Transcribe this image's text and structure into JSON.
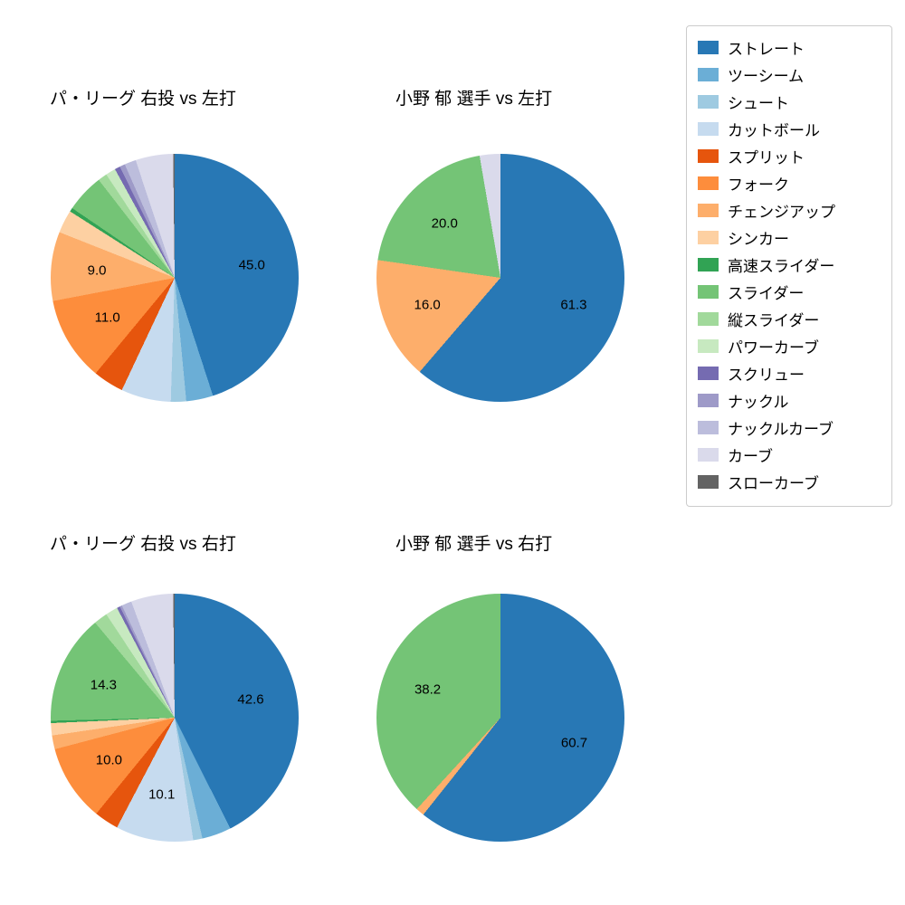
{
  "figure": {
    "background": "#ffffff",
    "text_color": "#000000"
  },
  "legend": {
    "position": "top-right",
    "items": [
      {
        "label": "ストレート",
        "color": "#2878b5"
      },
      {
        "label": "ツーシーム",
        "color": "#6baed6"
      },
      {
        "label": "シュート",
        "color": "#9ecae1"
      },
      {
        "label": "カットボール",
        "color": "#c6dbef"
      },
      {
        "label": "スプリット",
        "color": "#e6550d"
      },
      {
        "label": "フォーク",
        "color": "#fd8d3c"
      },
      {
        "label": "チェンジアップ",
        "color": "#fdae6b"
      },
      {
        "label": "シンカー",
        "color": "#fdd0a2"
      },
      {
        "label": "高速スライダー",
        "color": "#31a354"
      },
      {
        "label": "スライダー",
        "color": "#74c476"
      },
      {
        "label": "縦スライダー",
        "color": "#a1d99b"
      },
      {
        "label": "パワーカーブ",
        "color": "#c7e9c0"
      },
      {
        "label": "スクリュー",
        "color": "#756bb1"
      },
      {
        "label": "ナックル",
        "color": "#9e9ac8"
      },
      {
        "label": "ナックルカーブ",
        "color": "#bcbddc"
      },
      {
        "label": "カーブ",
        "color": "#dadaeb"
      },
      {
        "label": "スローカーブ",
        "color": "#636363"
      }
    ]
  },
  "chart_data": [
    {
      "type": "pie",
      "title": "パ・リーグ 右投 vs 左打",
      "start_angle": "top",
      "direction": "clockwise",
      "label_distance": 0.63,
      "slices": [
        {
          "label": "ストレート",
          "value": 45.0,
          "labeled": true
        },
        {
          "label": "ツーシーム",
          "value": 3.5,
          "labeled": false
        },
        {
          "label": "シュート",
          "value": 2.0,
          "labeled": false
        },
        {
          "label": "カットボール",
          "value": 6.5,
          "labeled": false
        },
        {
          "label": "スプリット",
          "value": 4.0,
          "labeled": false
        },
        {
          "label": "フォーク",
          "value": 11.0,
          "labeled": true
        },
        {
          "label": "チェンジアップ",
          "value": 9.0,
          "labeled": true
        },
        {
          "label": "シンカー",
          "value": 3.0,
          "labeled": false
        },
        {
          "label": "高速スライダー",
          "value": 0.5,
          "labeled": false
        },
        {
          "label": "スライダー",
          "value": 5.0,
          "labeled": false
        },
        {
          "label": "縦スライダー",
          "value": 1.2,
          "labeled": false
        },
        {
          "label": "パワーカーブ",
          "value": 1.3,
          "labeled": false
        },
        {
          "label": "スクリュー",
          "value": 0.7,
          "labeled": false
        },
        {
          "label": "ナックル",
          "value": 0.7,
          "labeled": false
        },
        {
          "label": "ナックルカーブ",
          "value": 1.5,
          "labeled": false
        },
        {
          "label": "カーブ",
          "value": 4.9,
          "labeled": false
        },
        {
          "label": "スローカーブ",
          "value": 0.2,
          "labeled": false
        }
      ]
    },
    {
      "type": "pie",
      "title": "小野 郁 選手 vs 左打",
      "start_angle": "top",
      "direction": "clockwise",
      "label_distance": 0.63,
      "slices": [
        {
          "label": "ストレート",
          "value": 61.3,
          "labeled": true
        },
        {
          "label": "チェンジアップ",
          "value": 16.0,
          "labeled": true
        },
        {
          "label": "スライダー",
          "value": 20.0,
          "labeled": true
        },
        {
          "label": "カーブ",
          "value": 2.7,
          "labeled": false
        }
      ]
    },
    {
      "type": "pie",
      "title": "パ・リーグ 右投 vs 右打",
      "start_angle": "top",
      "direction": "clockwise",
      "label_distance": 0.63,
      "slices": [
        {
          "label": "ストレート",
          "value": 42.6,
          "labeled": true
        },
        {
          "label": "ツーシーム",
          "value": 3.8,
          "labeled": false
        },
        {
          "label": "シュート",
          "value": 1.2,
          "labeled": false
        },
        {
          "label": "カットボール",
          "value": 10.1,
          "labeled": true
        },
        {
          "label": "スプリット",
          "value": 3.2,
          "labeled": false
        },
        {
          "label": "フォーク",
          "value": 10.0,
          "labeled": true
        },
        {
          "label": "チェンジアップ",
          "value": 1.8,
          "labeled": false
        },
        {
          "label": "シンカー",
          "value": 1.6,
          "labeled": false
        },
        {
          "label": "高速スライダー",
          "value": 0.3,
          "labeled": false
        },
        {
          "label": "スライダー",
          "value": 14.3,
          "labeled": true
        },
        {
          "label": "縦スライダー",
          "value": 1.8,
          "labeled": false
        },
        {
          "label": "パワーカーブ",
          "value": 1.6,
          "labeled": false
        },
        {
          "label": "スクリュー",
          "value": 0.4,
          "labeled": false
        },
        {
          "label": "ナックル",
          "value": 0.3,
          "labeled": false
        },
        {
          "label": "ナックルカーブ",
          "value": 1.3,
          "labeled": false
        },
        {
          "label": "カーブ",
          "value": 5.5,
          "labeled": false
        },
        {
          "label": "スローカーブ",
          "value": 0.2,
          "labeled": false
        }
      ]
    },
    {
      "type": "pie",
      "title": "小野 郁 選手 vs 右打",
      "start_angle": "top",
      "direction": "clockwise",
      "label_distance": 0.63,
      "slices": [
        {
          "label": "ストレート",
          "value": 60.7,
          "labeled": true
        },
        {
          "label": "チェンジアップ",
          "value": 1.1,
          "labeled": false
        },
        {
          "label": "スライダー",
          "value": 38.2,
          "labeled": true
        }
      ]
    }
  ]
}
